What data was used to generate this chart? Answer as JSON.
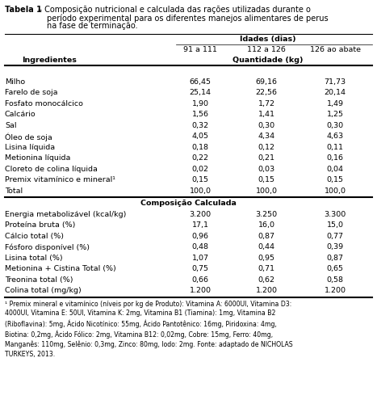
{
  "title_bold": "Tabela 1",
  "title_rest": " – Composição nutricional e calculada das rações utilizadas durante o período experimental para os diferentes manejos alimentares de perus na fase de terminação.",
  "header1": "Idades (dias)",
  "header2_cols": [
    "91 a 111",
    "112 a 126",
    "126 ao abate"
  ],
  "col_left": "Ingredientes",
  "col_qty": "Quantidade (kg)",
  "section1_rows": [
    [
      "Milho",
      "66,45",
      "69,16",
      "71,73"
    ],
    [
      "Farelo de soja",
      "25,14",
      "22,56",
      "20,14"
    ],
    [
      "Fosfato monocálcico",
      "1,90",
      "1,72",
      "1,49"
    ],
    [
      "Calcário",
      "1,56",
      "1,41",
      "1,25"
    ],
    [
      "Sal",
      "0,32",
      "0,30",
      "0,30"
    ],
    [
      "Óleo de soja",
      "4,05",
      "4,34",
      "4,63"
    ],
    [
      "Lisina líquida",
      "0,18",
      "0,12",
      "0,11"
    ],
    [
      "Metionina líquida",
      "0,22",
      "0,21",
      "0,16"
    ],
    [
      "Cloreto de colina líquida",
      "0,02",
      "0,03",
      "0,04"
    ],
    [
      "Premix vitamínico e mineral¹",
      "0,15",
      "0,15",
      "0,15"
    ],
    [
      "Total",
      "100,0",
      "100,0",
      "100,0"
    ]
  ],
  "section2_header": "Composição Calculada",
  "section2_rows": [
    [
      "Energia metabolizável (kcal/kg)",
      "3.200",
      "3.250",
      "3.300"
    ],
    [
      "Proteína bruta (%)",
      "17,1",
      "16,0",
      "15,0"
    ],
    [
      "Cálcio total (%)",
      "0,96",
      "0,87",
      "0,77"
    ],
    [
      "Fósforo disponível (%)",
      "0,48",
      "0,44",
      "0,39"
    ],
    [
      "Lisina total (%)",
      "1,07",
      "0,95",
      "0,87"
    ],
    [
      "Metionina + Cistina Total (%)",
      "0,75",
      "0,71",
      "0,65"
    ],
    [
      "Treonina total (%)",
      "0,66",
      "0,62",
      "0,58"
    ],
    [
      "Colina total (mg/kg)",
      "1.200",
      "1.200",
      "1.200"
    ]
  ],
  "footnote": "¹ Premix mineral e vitamínico (níveis por kg de Produto): Vitamina A: 6000UI, Vitamina D3:\n4000UI, Vitamina E: 50UI, Vitamina K: 2mg, Vitamina B1 (Tiamina): 1mg, Vitamina B2\n(Riboflavina): 5mg, Ácido Nicotínico: 55mg, Ácido Pantotênico: 16mg, Piridoxina: 4mg,\nBiotina: 0,2mg, Ácido Fólico: 2mg, Vitamina B12: 0,02mg, Cobre: 15mg, Ferro: 40mg,\nManganês: 110mg, Selênio: 0,3mg, Zinco: 80mg, Iodo: 2mg. Fonte: adaptado de NICHOLAS\nTURKEYS, 2013.",
  "bg_color": "#ffffff",
  "text_color": "#000000",
  "fontsize_title": 7.0,
  "fontsize_body": 6.8,
  "fontsize_footnote": 5.6
}
